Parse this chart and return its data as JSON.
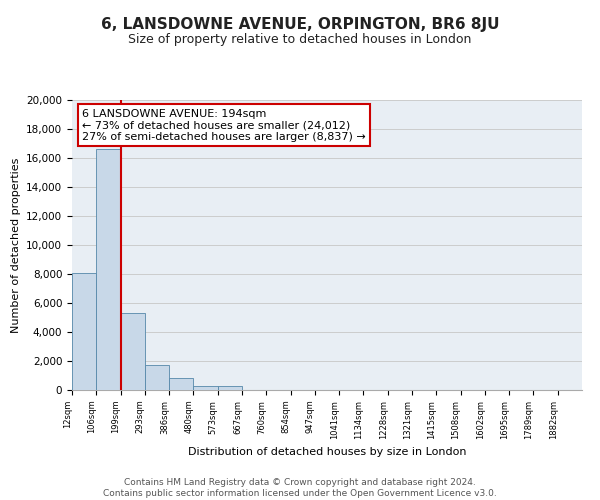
{
  "title": "6, LANSDOWNE AVENUE, ORPINGTON, BR6 8JU",
  "subtitle": "Size of property relative to detached houses in London",
  "xlabel": "Distribution of detached houses by size in London",
  "ylabel": "Number of detached properties",
  "bar_color": "#c8d8e8",
  "bar_edge_color": "#5588aa",
  "bin_labels": [
    "12sqm",
    "106sqm",
    "199sqm",
    "293sqm",
    "386sqm",
    "480sqm",
    "573sqm",
    "667sqm",
    "760sqm",
    "854sqm",
    "947sqm",
    "1041sqm",
    "1134sqm",
    "1228sqm",
    "1321sqm",
    "1415sqm",
    "1508sqm",
    "1602sqm",
    "1695sqm",
    "1789sqm",
    "1882sqm"
  ],
  "bar_heights": [
    8100,
    16600,
    5300,
    1750,
    800,
    300,
    280,
    0,
    0,
    0,
    0,
    0,
    0,
    0,
    0,
    0,
    0,
    0,
    0,
    0,
    0
  ],
  "ylim": [
    0,
    20000
  ],
  "yticks": [
    0,
    2000,
    4000,
    6000,
    8000,
    10000,
    12000,
    14000,
    16000,
    18000,
    20000
  ],
  "property_line_x": 2,
  "property_line_color": "#cc0000",
  "annotation_text": "6 LANSDOWNE AVENUE: 194sqm\n← 73% of detached houses are smaller (24,012)\n27% of semi-detached houses are larger (8,837) →",
  "annotation_box_color": "#ffffff",
  "annotation_box_edge": "#cc0000",
  "grid_color": "#cccccc",
  "background_color": "#e8eef4",
  "footer_text": "Contains HM Land Registry data © Crown copyright and database right 2024.\nContains public sector information licensed under the Open Government Licence v3.0.",
  "title_fontsize": 11,
  "subtitle_fontsize": 9,
  "annotation_fontsize": 8,
  "footer_fontsize": 6.5,
  "ylabel_fontsize": 8,
  "xlabel_fontsize": 8
}
